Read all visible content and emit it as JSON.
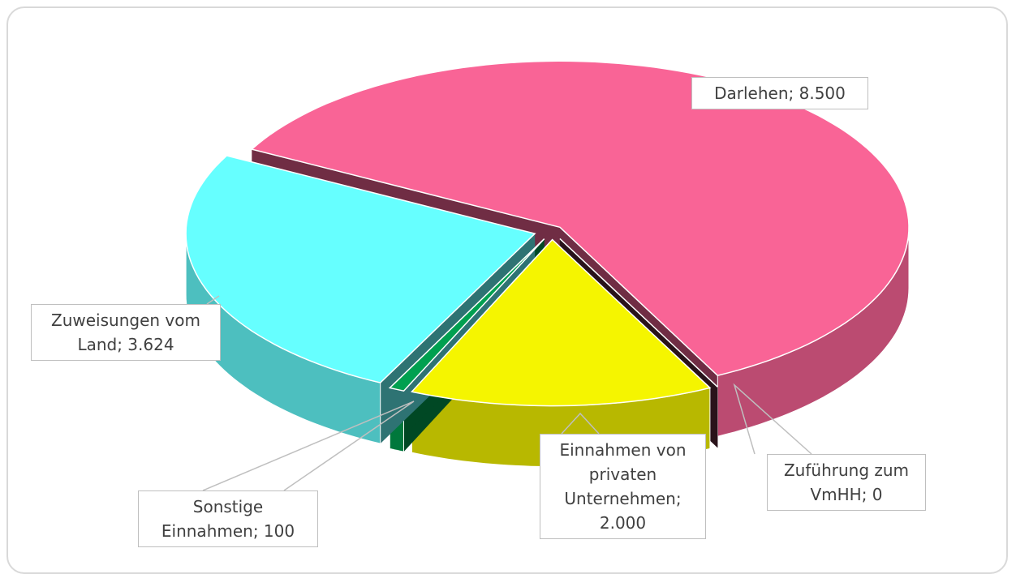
{
  "chart_data": {
    "type": "pie3d",
    "values": [
      8500,
      0,
      2000,
      100,
      3624
    ],
    "value_labels": [
      "Darlehen; 8.500",
      "Zuführung zum VmHH; 0",
      "Einnahmen von privaten Unternehmen; 2.000",
      "Sonstige Einnahmen; 100",
      "Zuweisungen vom Land; 3.624"
    ],
    "colors": [
      "#f96496",
      "#5a2a3a",
      "#f5f500",
      "#00a050",
      "#66ffff"
    ]
  }
}
